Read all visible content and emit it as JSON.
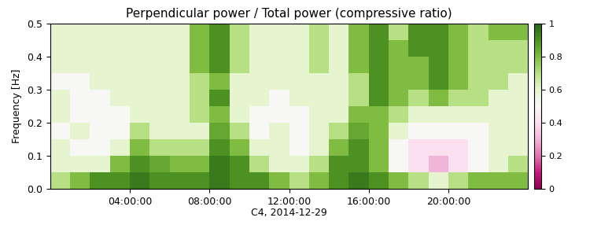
{
  "chart_data": {
    "type": "heatmap",
    "title": "Perpendicular power / Total power (compressive ratio)",
    "x_label": "C4, 2014-12-29",
    "y_label": "Frequency [Hz]",
    "xlim": [
      0,
      24
    ],
    "xticks": [
      {
        "value": 4,
        "label": "04:00:00"
      },
      {
        "value": 8,
        "label": "08:00:00"
      },
      {
        "value": 12,
        "label": "12:00:00"
      },
      {
        "value": 16,
        "label": "16:00:00"
      },
      {
        "value": 20,
        "label": "20:00:00"
      }
    ],
    "ylim": [
      0.0,
      0.5
    ],
    "yticks": [
      0.0,
      0.1,
      0.2,
      0.3,
      0.4,
      0.5
    ],
    "x_edges": [
      0,
      1,
      2,
      3,
      4,
      5,
      6,
      7,
      8,
      9,
      10,
      11,
      12,
      13,
      14,
      15,
      16,
      17,
      18,
      19,
      20,
      21,
      22,
      23,
      24
    ],
    "y_edges": [
      0.0,
      0.05,
      0.1,
      0.15,
      0.2,
      0.25,
      0.3,
      0.35,
      0.4,
      0.45,
      0.5
    ],
    "cells_by_column": [
      [
        0.7,
        0.6,
        0.6,
        0.5,
        0.6,
        0.6,
        0.5,
        0.6,
        0.6,
        0.6
      ],
      [
        0.8,
        0.6,
        0.5,
        0.6,
        0.5,
        0.5,
        0.5,
        0.6,
        0.6,
        0.6
      ],
      [
        0.9,
        0.6,
        0.5,
        0.5,
        0.5,
        0.5,
        0.6,
        0.6,
        0.6,
        0.6
      ],
      [
        0.9,
        0.8,
        0.6,
        0.5,
        0.5,
        0.6,
        0.6,
        0.6,
        0.6,
        0.6
      ],
      [
        0.95,
        0.9,
        0.8,
        0.7,
        0.6,
        0.6,
        0.6,
        0.6,
        0.6,
        0.6
      ],
      [
        0.9,
        0.85,
        0.7,
        0.6,
        0.6,
        0.6,
        0.6,
        0.6,
        0.6,
        0.6
      ],
      [
        0.9,
        0.8,
        0.7,
        0.6,
        0.6,
        0.6,
        0.6,
        0.6,
        0.6,
        0.6
      ],
      [
        0.9,
        0.8,
        0.7,
        0.6,
        0.7,
        0.7,
        0.7,
        0.8,
        0.8,
        0.8
      ],
      [
        0.95,
        0.95,
        0.9,
        0.85,
        0.8,
        0.9,
        0.8,
        0.9,
        0.9,
        0.9
      ],
      [
        0.9,
        0.9,
        0.8,
        0.7,
        0.6,
        0.6,
        0.6,
        0.7,
        0.7,
        0.7
      ],
      [
        0.9,
        0.7,
        0.6,
        0.5,
        0.5,
        0.6,
        0.6,
        0.6,
        0.6,
        0.6
      ],
      [
        0.8,
        0.6,
        0.6,
        0.6,
        0.5,
        0.5,
        0.6,
        0.6,
        0.6,
        0.6
      ],
      [
        0.7,
        0.6,
        0.5,
        0.5,
        0.5,
        0.6,
        0.6,
        0.6,
        0.6,
        0.6
      ],
      [
        0.8,
        0.7,
        0.6,
        0.6,
        0.6,
        0.6,
        0.6,
        0.7,
        0.7,
        0.7
      ],
      [
        0.9,
        0.9,
        0.8,
        0.7,
        0.6,
        0.6,
        0.6,
        0.6,
        0.6,
        0.6
      ],
      [
        0.95,
        0.9,
        0.9,
        0.85,
        0.8,
        0.7,
        0.7,
        0.8,
        0.8,
        0.8
      ],
      [
        0.9,
        0.8,
        0.8,
        0.8,
        0.8,
        0.9,
        0.9,
        0.9,
        0.9,
        0.9
      ],
      [
        0.8,
        0.5,
        0.5,
        0.6,
        0.7,
        0.8,
        0.8,
        0.8,
        0.8,
        0.7
      ],
      [
        0.7,
        0.4,
        0.4,
        0.5,
        0.6,
        0.7,
        0.8,
        0.8,
        0.9,
        0.9
      ],
      [
        0.6,
        0.3,
        0.4,
        0.5,
        0.6,
        0.8,
        0.9,
        0.9,
        0.9,
        0.9
      ],
      [
        0.7,
        0.4,
        0.4,
        0.5,
        0.6,
        0.7,
        0.8,
        0.8,
        0.8,
        0.8
      ],
      [
        0.8,
        0.5,
        0.5,
        0.5,
        0.6,
        0.7,
        0.7,
        0.7,
        0.7,
        0.7
      ],
      [
        0.8,
        0.6,
        0.6,
        0.6,
        0.6,
        0.6,
        0.7,
        0.7,
        0.7,
        0.8
      ],
      [
        0.8,
        0.7,
        0.6,
        0.6,
        0.6,
        0.6,
        0.6,
        0.7,
        0.7,
        0.8
      ]
    ],
    "colorbar_range": [
      0,
      1
    ],
    "colorbar_ticks": [
      0,
      0.2,
      0.4,
      0.6,
      0.8,
      1
    ]
  }
}
